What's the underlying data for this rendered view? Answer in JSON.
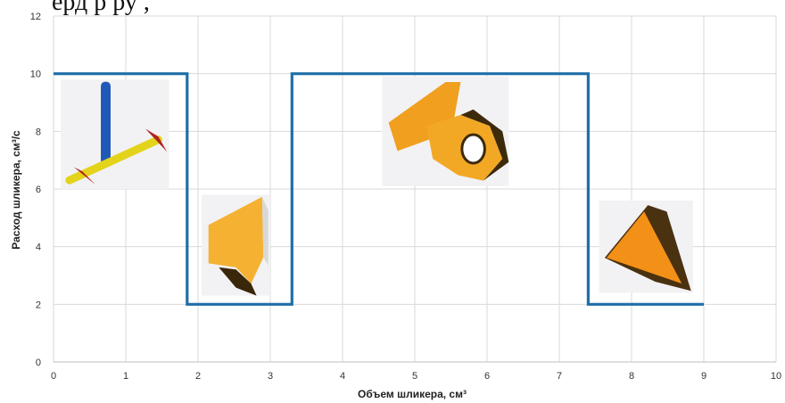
{
  "top_caption": "ерд        р ру ,",
  "chart_data": {
    "type": "line",
    "title": "",
    "xlabel": "Объем шликера, см³",
    "ylabel": "Расход шликера, см³/с",
    "xlim": [
      0,
      10
    ],
    "ylim": [
      0,
      12
    ],
    "x_ticks": [
      "0",
      "1",
      "2",
      "3",
      "4",
      "5",
      "6",
      "7",
      "8",
      "9",
      "10"
    ],
    "y_ticks": [
      "0",
      "2",
      "4",
      "6",
      "8",
      "10",
      "12"
    ],
    "grid": true,
    "series": [
      {
        "x": [
          0,
          1.85,
          1.85,
          3.3,
          3.3,
          7.4,
          7.4,
          9.0
        ],
        "y": [
          10,
          10,
          2,
          2,
          10,
          10,
          2,
          2
        ]
      }
    ],
    "line_color": "#1f6fa8",
    "grid_color": "#d9d9d9",
    "images": [
      {
        "name": "axes-model-image",
        "x": [
          0.1,
          1.6
        ],
        "y": [
          6.0,
          9.8
        ]
      },
      {
        "name": "wedge-part-image",
        "x": [
          2.05,
          3.0
        ],
        "y": [
          2.3,
          5.8
        ]
      },
      {
        "name": "bracket-part-image",
        "x": [
          4.55,
          6.3
        ],
        "y": [
          6.1,
          9.9
        ]
      },
      {
        "name": "triangle-part-image",
        "x": [
          7.55,
          8.85
        ],
        "y": [
          2.4,
          5.6
        ]
      }
    ]
  }
}
